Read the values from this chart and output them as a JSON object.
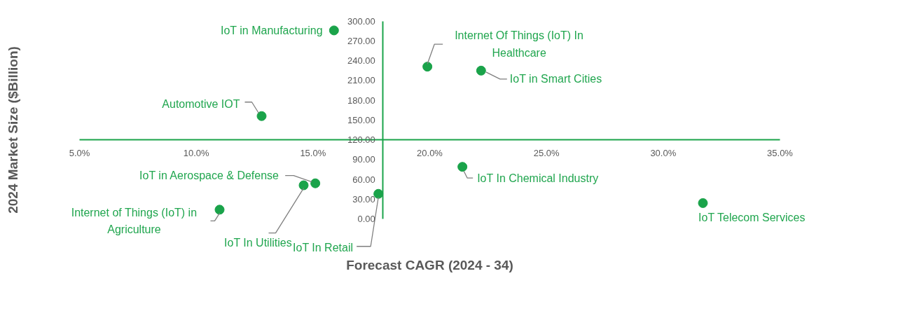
{
  "chart_data": {
    "type": "scatter",
    "xlabel": "Forecast CAGR (2024 - 34)",
    "ylabel": "2024 Market Size ($Billion)",
    "marker": "circle",
    "xlim": [
      5,
      35
    ],
    "ylim": [
      0,
      300
    ],
    "xticks": [
      {
        "value": 5,
        "label": "5.0%"
      },
      {
        "value": 10,
        "label": "10.0%"
      },
      {
        "value": 15,
        "label": "15.0%"
      },
      {
        "value": 20,
        "label": "20.0%"
      },
      {
        "value": 25,
        "label": "25.0%"
      },
      {
        "value": 30,
        "label": "30.0%"
      },
      {
        "value": 35,
        "label": "35.0%"
      }
    ],
    "yticks": [
      {
        "value": 0,
        "label": "0.00"
      },
      {
        "value": 30,
        "label": "30.00"
      },
      {
        "value": 60,
        "label": "60.00"
      },
      {
        "value": 90,
        "label": "90.00"
      },
      {
        "value": 120,
        "label": "120.00"
      },
      {
        "value": 150,
        "label": "150.00"
      },
      {
        "value": 180,
        "label": "180.00"
      },
      {
        "value": 210,
        "label": "210.00"
      },
      {
        "value": 240,
        "label": "240.00"
      },
      {
        "value": 270,
        "label": "270.00"
      },
      {
        "value": 300,
        "label": "300.00"
      }
    ],
    "series": [
      {
        "name": "IoT in Manufacturing",
        "color": "#1aa34a",
        "x": [
          15.9
        ],
        "values": [
          286
        ]
      },
      {
        "name": "Internet Of Things (IoT) In Healthcare",
        "color": "#1aa34a",
        "x": [
          19.9
        ],
        "values": [
          231
        ]
      },
      {
        "name": "IoT in Smart Cities",
        "color": "#1aa34a",
        "x": [
          22.2
        ],
        "values": [
          225
        ]
      },
      {
        "name": "Automotive IOT",
        "color": "#1aa34a",
        "x": [
          12.8
        ],
        "values": [
          156
        ]
      },
      {
        "name": "IoT in Aerospace & Defense",
        "color": "#1aa34a",
        "x": [
          15.1
        ],
        "values": [
          54
        ]
      },
      {
        "name": "IoT In Utilities",
        "color": "#1aa34a",
        "x": [
          14.6
        ],
        "values": [
          51
        ]
      },
      {
        "name": "IoT In Retail",
        "color": "#1aa34a",
        "x": [
          17.8
        ],
        "values": [
          38
        ]
      },
      {
        "name": "IoT In Chemical Industry",
        "color": "#1aa34a",
        "x": [
          21.4
        ],
        "values": [
          79
        ]
      },
      {
        "name": "IoT Telecom Services",
        "color": "#1aa34a",
        "x": [
          31.7
        ],
        "values": [
          24
        ]
      },
      {
        "name": "Internet of Things (IoT) in Agriculture",
        "color": "#1aa34a",
        "x": [
          11.0
        ],
        "values": [
          14
        ]
      }
    ]
  }
}
